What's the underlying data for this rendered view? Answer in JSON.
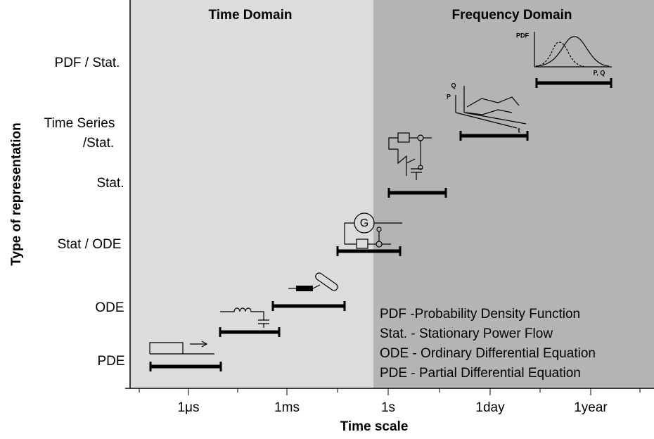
{
  "header": {
    "time_domain": "Time Domain",
    "frequency_domain": "Frequency Domain"
  },
  "axes": {
    "y_label": "Type of representation",
    "x_label": "Time scale",
    "y_categories": [
      "PDF / Stat.",
      "Time Series",
      "/Stat.",
      "Stat.",
      "Stat / ODE",
      "ODE",
      "PDE"
    ],
    "x_ticks": [
      "1μs",
      "1ms",
      "1s",
      "1day",
      "1year"
    ]
  },
  "legend": [
    "PDF -Probability Density Function",
    "Stat. - Stationary Power Flow",
    "ODE - Ordinary Differential Equation",
    "PDE - Partial Differential Equation"
  ],
  "icons": {
    "generator": "G",
    "pdf_axis": "PDF",
    "pq_axis": "P, Q",
    "q_axis": "Q",
    "p_axis": "P",
    "t_axis": "t"
  }
}
